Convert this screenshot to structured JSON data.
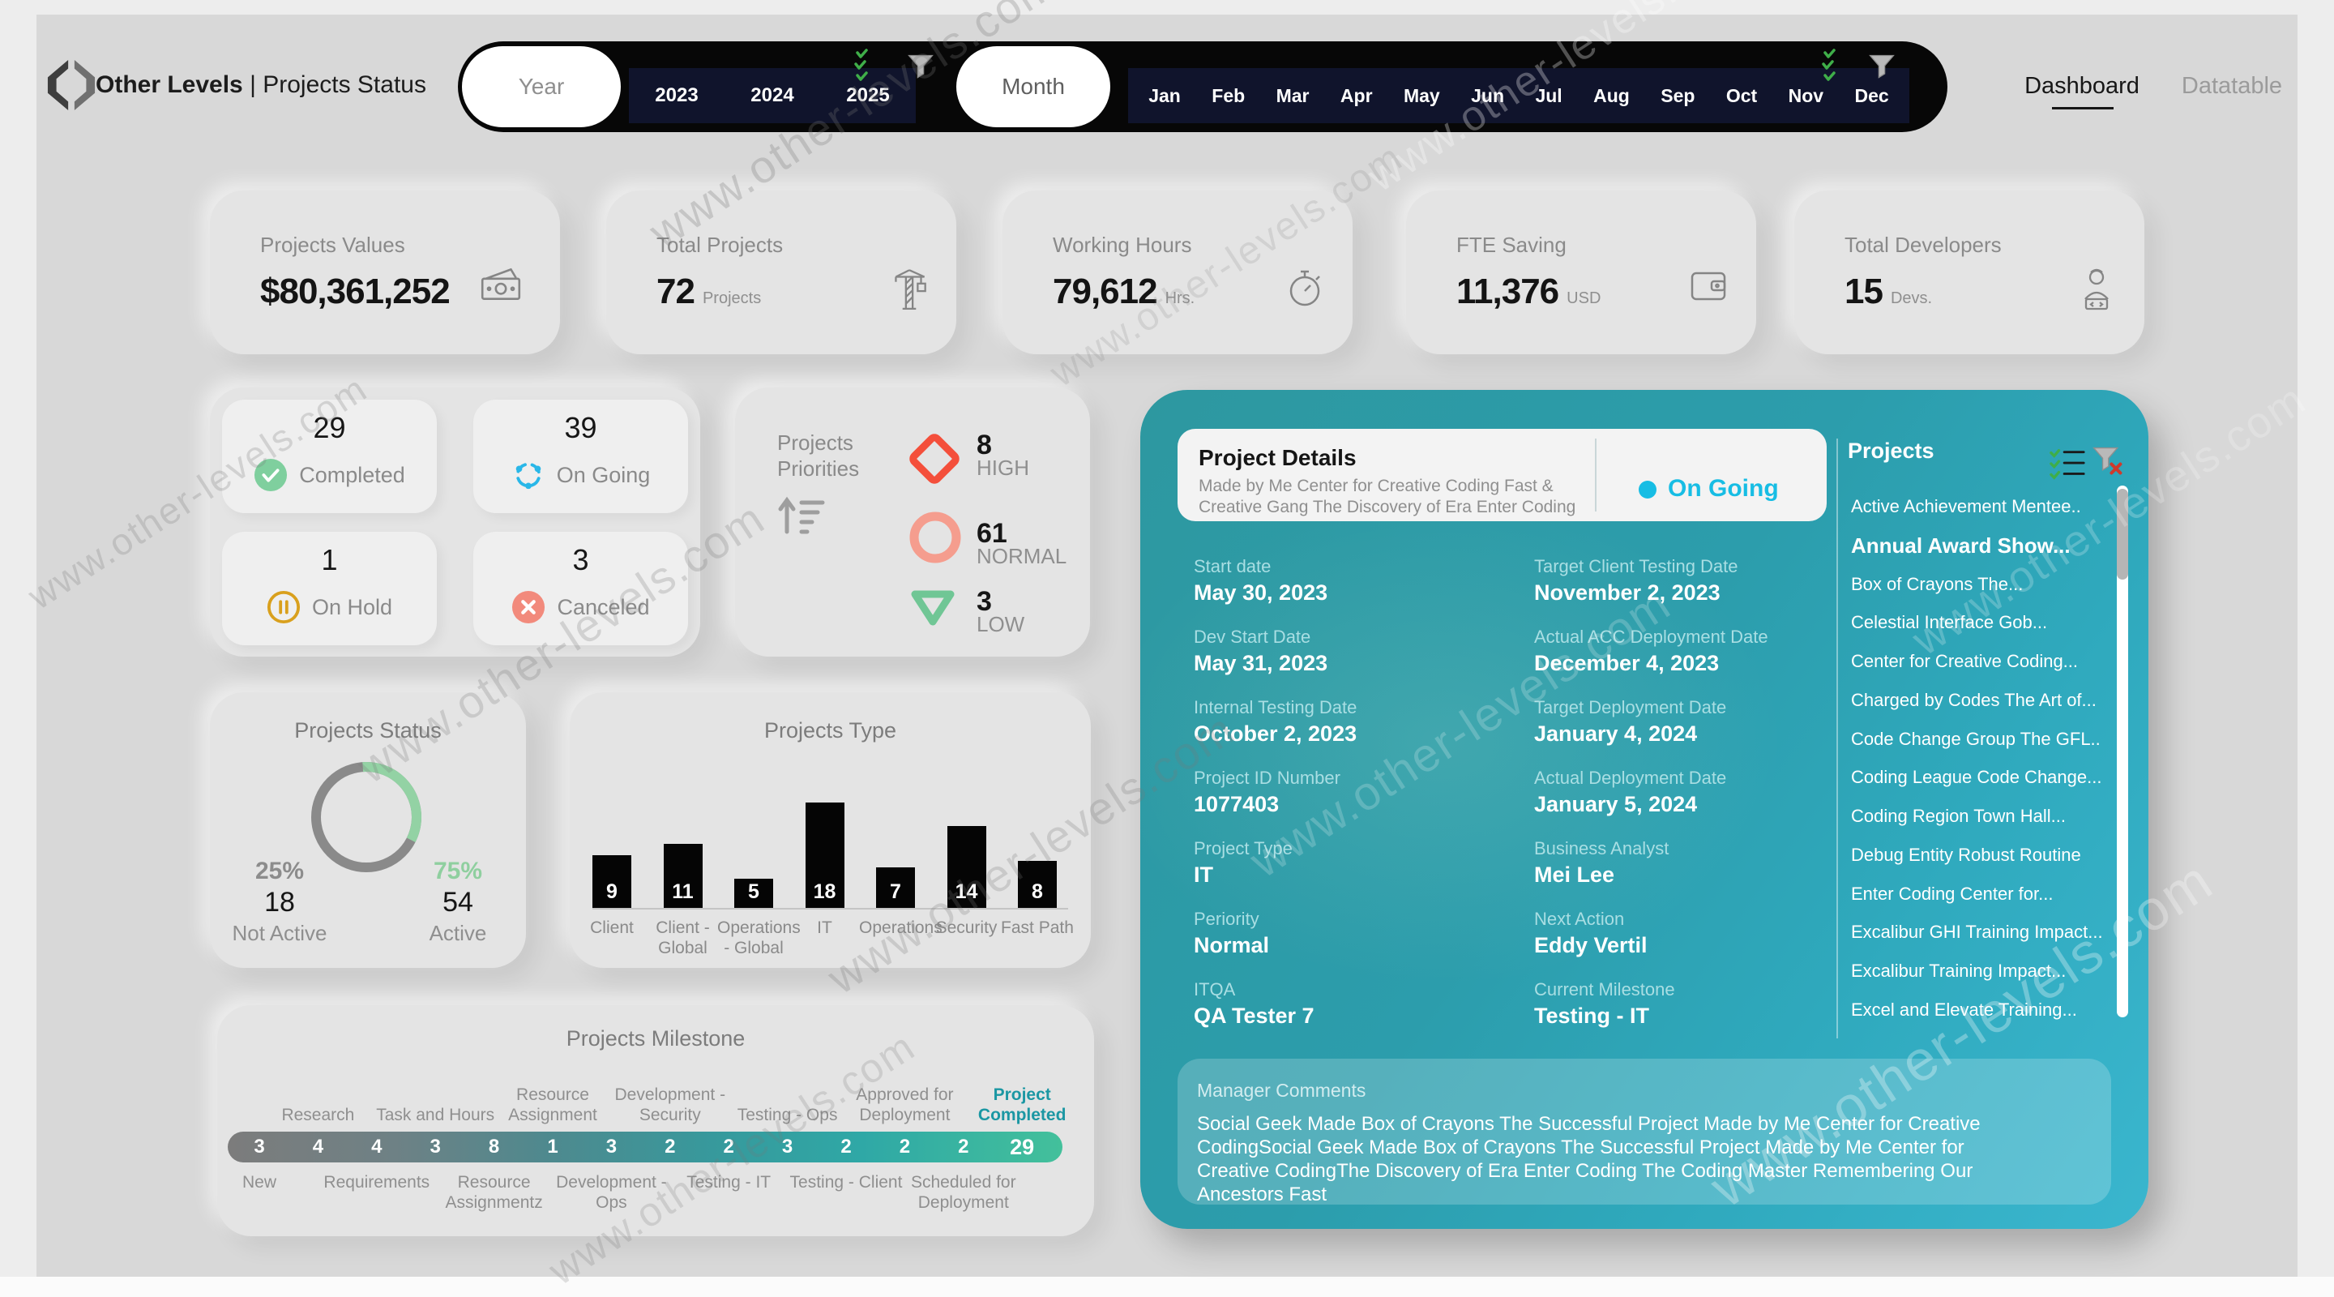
{
  "watermark": "www.other-levels.com",
  "header": {
    "brand": "Other Levels",
    "suffix": " | Projects Status",
    "tabs": [
      {
        "label": "Dashboard",
        "active": true
      },
      {
        "label": "Datatable",
        "active": false
      }
    ]
  },
  "filters": {
    "year": {
      "label": "Year",
      "options": [
        "2023",
        "2024",
        "2025"
      ]
    },
    "month": {
      "label": "Month",
      "options": [
        "Jan",
        "Feb",
        "Mar",
        "Apr",
        "May",
        "Jun",
        "Jul",
        "Aug",
        "Sep",
        "Oct",
        "Nov",
        "Dec"
      ]
    }
  },
  "kpis": [
    {
      "label": "Projects Values",
      "value": "$80,361,252",
      "unit": "",
      "icon": "cash-icon"
    },
    {
      "label": "Total Projects",
      "value": "72",
      "unit": "Projects",
      "icon": "crane-icon"
    },
    {
      "label": "Working Hours",
      "value": "79,612",
      "unit": "Hrs.",
      "icon": "stopwatch-icon"
    },
    {
      "label": "FTE Saving",
      "value": "11,376",
      "unit": "USD",
      "icon": "wallet-icon"
    },
    {
      "label": "Total Developers",
      "value": "15",
      "unit": "Devs.",
      "icon": "developer-icon"
    }
  ],
  "status_cards": [
    {
      "value": "29",
      "label": "Completed",
      "icon": "check-circle-icon",
      "color": "#7fcf9e"
    },
    {
      "value": "39",
      "label": "On Going",
      "icon": "sync-icon",
      "color": "#29b7e8"
    },
    {
      "value": "1",
      "label": "On Hold",
      "icon": "pause-circle-icon",
      "color": "#d9a01d"
    },
    {
      "value": "3",
      "label": "Canceled",
      "icon": "cancel-circle-icon",
      "color": "#f28a7c"
    }
  ],
  "priorities": {
    "title": "Projects Priorities",
    "items": [
      {
        "value": "8",
        "label": "HIGH",
        "shape": "diamond",
        "color": "#f44f3b"
      },
      {
        "value": "61",
        "label": "NORMAL",
        "shape": "circle",
        "color": "#f59d8e"
      },
      {
        "value": "3",
        "label": "LOW",
        "shape": "triangle-down",
        "color": "#70c695"
      }
    ]
  },
  "chart_data": [
    {
      "type": "pie",
      "title": "Projects Status",
      "labels": [
        "Active",
        "Not Active"
      ],
      "values": [
        54,
        18
      ],
      "percents": [
        "75%",
        "25%"
      ],
      "colors": [
        "#93d2a4",
        "#8a8a8a"
      ]
    },
    {
      "type": "bar",
      "title": "Projects Type",
      "categories": [
        "Client",
        "Client - Global",
        "Operations - Global",
        "IT",
        "Operations",
        "Security",
        "Fast Path"
      ],
      "values": [
        9,
        11,
        5,
        18,
        7,
        14,
        8
      ],
      "bar_color": "#050505",
      "ylim": [
        0,
        18
      ]
    },
    {
      "type": "funnel",
      "title": "Projects Milestone",
      "stages": [
        {
          "label": "New",
          "value": 3,
          "label_pos": "bottom"
        },
        {
          "label": "Research",
          "value": 4,
          "label_pos": "top"
        },
        {
          "label": "Requirements",
          "value": 4,
          "label_pos": "bottom"
        },
        {
          "label": "Task and Hours",
          "value": 3,
          "label_pos": "top"
        },
        {
          "label": "Resource Assignmentz",
          "value": 8,
          "label_pos": "bottom"
        },
        {
          "label": "Resource Assignment",
          "value": 1,
          "label_pos": "top"
        },
        {
          "label": "Development - Ops",
          "value": 3,
          "label_pos": "bottom"
        },
        {
          "label": "Development - Security",
          "value": 2,
          "label_pos": "top"
        },
        {
          "label": "Testing - IT",
          "value": 2,
          "label_pos": "bottom"
        },
        {
          "label": "Testing - Ops",
          "value": 3,
          "label_pos": "top"
        },
        {
          "label": "Testing - Client",
          "value": 2,
          "label_pos": "bottom"
        },
        {
          "label": "Approved for Deployment",
          "value": 2,
          "label_pos": "top"
        },
        {
          "label": "Scheduled for Deployment",
          "value": 2,
          "label_pos": "bottom"
        },
        {
          "label": "Project Completed",
          "value": 29,
          "label_pos": "top",
          "highlight": true
        }
      ]
    }
  ],
  "details_panel": {
    "header": {
      "title": "Project Details",
      "subtitle": "Made by Me Center for Creative Coding Fast & Creative Gang The Discovery of Era Enter Coding",
      "status": "On Going"
    },
    "fields": [
      {
        "label": "Start date",
        "value": "May 30, 2023"
      },
      {
        "label": "Target Client Testing Date",
        "value": "November 2, 2023"
      },
      {
        "label": "Dev Start Date",
        "value": "May 31, 2023"
      },
      {
        "label": "Actual ACC Deployment Date",
        "value": "December 4, 2023"
      },
      {
        "label": "Internal Testing Date",
        "value": "October 2, 2023"
      },
      {
        "label": "Target Deployment Date",
        "value": "January 4, 2024"
      },
      {
        "label": "Project ID Number",
        "value": "1077403"
      },
      {
        "label": "Actual Deployment Date",
        "value": "January 5, 2024"
      },
      {
        "label": "Project Type",
        "value": "IT"
      },
      {
        "label": "Business Analyst",
        "value": "Mei Lee"
      },
      {
        "label": "Periority",
        "value": "Normal"
      },
      {
        "label": "Next Action",
        "value": "Eddy Vertil"
      },
      {
        "label": "ITQA",
        "value": "QA Tester 7"
      },
      {
        "label": "Current Milestone",
        "value": "Testing - IT"
      }
    ],
    "projects_list": {
      "title": "Projects",
      "items": [
        {
          "label": "Active Achievement Mentee..",
          "selected": false
        },
        {
          "label": "Annual Award Show...",
          "selected": true
        },
        {
          "label": "Box of Crayons The...",
          "selected": false
        },
        {
          "label": "Celestial Interface Gob...",
          "selected": false
        },
        {
          "label": "Center for Creative Coding...",
          "selected": false
        },
        {
          "label": "Charged by Codes The Art of...",
          "selected": false
        },
        {
          "label": "Code Change Group The GFL..",
          "selected": false
        },
        {
          "label": "Coding League Code Change...",
          "selected": false
        },
        {
          "label": "Coding Region Town Hall...",
          "selected": false
        },
        {
          "label": "Debug Entity Robust Routine",
          "selected": false
        },
        {
          "label": "Enter Coding Center for...",
          "selected": false
        },
        {
          "label": "Excalibur GHI Training Impact...",
          "selected": false
        },
        {
          "label": "Excalibur Training Impact...",
          "selected": false
        },
        {
          "label": "Excel and Elevate Training...",
          "selected": false
        }
      ]
    },
    "manager_comments": {
      "label": "Manager Comments",
      "text": "Social Geek Made Box of Crayons The Successful Project Made by Me Center for Creative CodingSocial Geek Made Box of Crayons The Successful Project Made by Me Center for Creative CodingThe Discovery of Era Enter Coding The Coding Master Remembering Our Ancestors Fast"
    }
  },
  "colors": {
    "accent_cyan": "#17bde4",
    "panel_teal_start": "#2d98a0",
    "panel_teal_end": "#3ab6ce",
    "green": "#7fcf9e",
    "amber": "#d9a01d",
    "red": "#f44f3b",
    "salmon": "#f28a7c",
    "navy": "#10142c",
    "funnel_start": "#7c7c7c",
    "funnel_end": "#43c09b"
  }
}
